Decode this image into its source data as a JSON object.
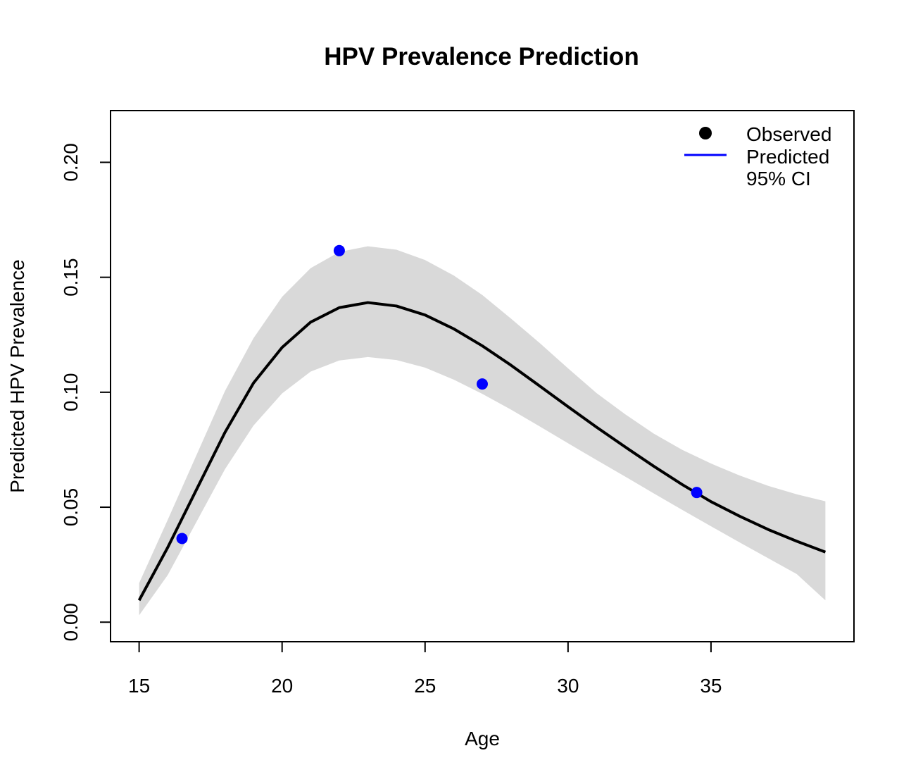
{
  "chart_data": {
    "type": "line",
    "title": "HPV Prevalence Prediction",
    "xlabel": "Age",
    "ylabel": "Predicted HPV Prevalence",
    "xlim": [
      14,
      40
    ],
    "ylim": [
      -0.0085,
      0.2225
    ],
    "x_ticks": [
      15,
      20,
      25,
      30,
      35
    ],
    "x_tick_labels": [
      "15",
      "20",
      "25",
      "30",
      "35"
    ],
    "y_ticks": [
      0.0,
      0.05,
      0.1,
      0.15,
      0.2
    ],
    "y_tick_labels": [
      "0.00",
      "0.05",
      "0.10",
      "0.15",
      "0.20"
    ],
    "grid": false,
    "legend_position": "top-right",
    "legend": [
      {
        "label": "Observed",
        "symbol": "point",
        "color": "#000000"
      },
      {
        "label": "Predicted",
        "symbol": "line",
        "color": "#0000ff"
      },
      {
        "label": "95% CI",
        "symbol": "none",
        "color": "#d9d9d9"
      }
    ],
    "colors": {
      "predicted_line": "#000000",
      "ci_band": "#d9d9d9",
      "observed_points": "#0000ff"
    },
    "series": [
      {
        "name": "Predicted",
        "x": [
          15,
          16,
          17,
          18,
          19,
          20,
          21,
          22,
          23,
          24,
          25,
          26,
          27,
          28,
          29,
          30,
          31,
          32,
          33,
          34,
          35,
          36,
          37,
          38,
          39
        ],
        "y": [
          0.0095,
          0.0325,
          0.0575,
          0.0825,
          0.104,
          0.1195,
          0.1305,
          0.1368,
          0.139,
          0.1375,
          0.1336,
          0.1276,
          0.1202,
          0.1118,
          0.1028,
          0.0937,
          0.0848,
          0.0762,
          0.0678,
          0.0598,
          0.0524,
          0.0461,
          0.0403,
          0.0352,
          0.0305
        ]
      },
      {
        "name": "95% CI",
        "x": [
          15,
          16,
          17,
          18,
          19,
          20,
          21,
          22,
          23,
          24,
          25,
          26,
          27,
          28,
          29,
          30,
          31,
          32,
          33,
          34,
          35,
          36,
          37,
          38,
          39
        ],
        "lower": [
          0.003,
          0.0205,
          0.0435,
          0.0665,
          0.0855,
          0.0995,
          0.109,
          0.1138,
          0.1153,
          0.114,
          0.1107,
          0.1055,
          0.0993,
          0.0925,
          0.0852,
          0.0778,
          0.0705,
          0.0633,
          0.056,
          0.0488,
          0.0417,
          0.0347,
          0.0278,
          0.0209,
          0.0095
        ],
        "upper": [
          0.017,
          0.0445,
          0.0725,
          0.1005,
          0.1235,
          0.1415,
          0.154,
          0.161,
          0.1635,
          0.162,
          0.1575,
          0.1508,
          0.1423,
          0.1321,
          0.1215,
          0.1104,
          0.0996,
          0.0904,
          0.082,
          0.0749,
          0.069,
          0.0638,
          0.0593,
          0.0556,
          0.0526
        ]
      },
      {
        "name": "Observed",
        "x": [
          16.5,
          22,
          27,
          34.5
        ],
        "y": [
          0.0364,
          0.1616,
          0.1036,
          0.0564
        ]
      }
    ]
  }
}
